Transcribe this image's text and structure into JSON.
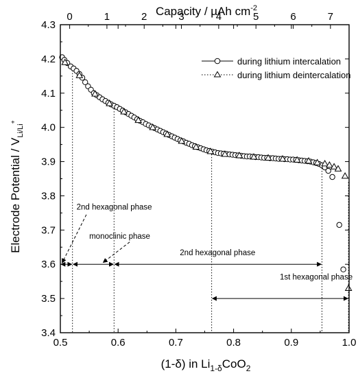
{
  "chart_data": {
    "type": "scatter",
    "top_axis": {
      "label": "Capacity / µAh cm",
      "label_sup": "-2",
      "range": [
        -0.25,
        7.5
      ],
      "ticks": [
        0,
        1,
        2,
        3,
        4,
        5,
        6,
        7
      ]
    },
    "x_axis": {
      "label_pre": "(1-δ) in Li",
      "label_sub1": "1-δ",
      "label_mid": "CoO",
      "label_sub2": "2",
      "range": [
        0.5,
        1.0
      ],
      "ticks": [
        0.5,
        0.6,
        0.7,
        0.8,
        0.9,
        1.0
      ],
      "tick_labels": [
        "0.5",
        "0.6",
        "0.7",
        "0.8",
        "0.9",
        "1.0"
      ]
    },
    "y_axis": {
      "label": "Electrode Potential / V",
      "label_sub": "Li/Li",
      "label_sup": "+",
      "range": [
        3.4,
        4.3
      ],
      "ticks": [
        3.4,
        3.5,
        3.6,
        3.7,
        3.8,
        3.9,
        4.0,
        4.1,
        4.2,
        4.3
      ],
      "tick_labels": [
        "3.4",
        "3.5",
        "3.6",
        "3.7",
        "3.8",
        "3.9",
        "4.0",
        "4.1",
        "4.2",
        "4.3"
      ]
    },
    "legend": {
      "position": "top-right",
      "entries": [
        {
          "label": "during lithium intercalation",
          "marker": "circle",
          "line": "solid"
        },
        {
          "label": "during lithium deintercalation",
          "marker": "triangle",
          "line": "dotted"
        }
      ]
    },
    "series": [
      {
        "marker": "circle",
        "points": [
          [
            0.503,
            4.205
          ],
          [
            0.507,
            4.197
          ],
          [
            0.512,
            4.188
          ],
          [
            0.518,
            4.178
          ],
          [
            0.523,
            4.172
          ],
          [
            0.528,
            4.165
          ],
          [
            0.533,
            4.156
          ],
          [
            0.538,
            4.145
          ],
          [
            0.543,
            4.132
          ],
          [
            0.548,
            4.12
          ],
          [
            0.553,
            4.11
          ],
          [
            0.558,
            4.1
          ],
          [
            0.563,
            4.094
          ],
          [
            0.568,
            4.088
          ],
          [
            0.573,
            4.082
          ],
          [
            0.578,
            4.077
          ],
          [
            0.583,
            4.072
          ],
          [
            0.588,
            4.067
          ],
          [
            0.593,
            4.063
          ],
          [
            0.598,
            4.059
          ],
          [
            0.603,
            4.054
          ],
          [
            0.608,
            4.049
          ],
          [
            0.613,
            4.044
          ],
          [
            0.618,
            4.039
          ],
          [
            0.623,
            4.034
          ],
          [
            0.628,
            4.029
          ],
          [
            0.633,
            4.024
          ],
          [
            0.638,
            4.019
          ],
          [
            0.643,
            4.015
          ],
          [
            0.648,
            4.01
          ],
          [
            0.653,
            4.006
          ],
          [
            0.658,
            4.002
          ],
          [
            0.663,
            3.998
          ],
          [
            0.668,
            3.994
          ],
          [
            0.673,
            3.99
          ],
          [
            0.678,
            3.986
          ],
          [
            0.683,
            3.982
          ],
          [
            0.688,
            3.978
          ],
          [
            0.693,
            3.974
          ],
          [
            0.698,
            3.97
          ],
          [
            0.703,
            3.966
          ],
          [
            0.708,
            3.962
          ],
          [
            0.713,
            3.959
          ],
          [
            0.718,
            3.955
          ],
          [
            0.723,
            3.952
          ],
          [
            0.728,
            3.948
          ],
          [
            0.733,
            3.945
          ],
          [
            0.738,
            3.942
          ],
          [
            0.743,
            3.939
          ],
          [
            0.748,
            3.936
          ],
          [
            0.753,
            3.933
          ],
          [
            0.758,
            3.931
          ],
          [
            0.763,
            3.929
          ],
          [
            0.768,
            3.927
          ],
          [
            0.773,
            3.925
          ],
          [
            0.778,
            3.924
          ],
          [
            0.783,
            3.923
          ],
          [
            0.788,
            3.922
          ],
          [
            0.793,
            3.921
          ],
          [
            0.798,
            3.92
          ],
          [
            0.803,
            3.919
          ],
          [
            0.808,
            3.918
          ],
          [
            0.813,
            3.917
          ],
          [
            0.818,
            3.916
          ],
          [
            0.823,
            3.915
          ],
          [
            0.828,
            3.915
          ],
          [
            0.833,
            3.914
          ],
          [
            0.838,
            3.913
          ],
          [
            0.843,
            3.913
          ],
          [
            0.848,
            3.912
          ],
          [
            0.853,
            3.911
          ],
          [
            0.858,
            3.911
          ],
          [
            0.863,
            3.91
          ],
          [
            0.868,
            3.91
          ],
          [
            0.873,
            3.909
          ],
          [
            0.878,
            3.908
          ],
          [
            0.883,
            3.908
          ],
          [
            0.888,
            3.907
          ],
          [
            0.893,
            3.907
          ],
          [
            0.898,
            3.906
          ],
          [
            0.903,
            3.906
          ],
          [
            0.908,
            3.905
          ],
          [
            0.913,
            3.904
          ],
          [
            0.918,
            3.903
          ],
          [
            0.923,
            3.902
          ],
          [
            0.928,
            3.901
          ],
          [
            0.933,
            3.9
          ],
          [
            0.938,
            3.898
          ],
          [
            0.943,
            3.896
          ],
          [
            0.948,
            3.893
          ],
          [
            0.953,
            3.889
          ],
          [
            0.958,
            3.883
          ],
          [
            0.964,
            3.873
          ],
          [
            0.971,
            3.855
          ],
          [
            0.983,
            3.715
          ],
          [
            0.99,
            3.585
          ]
        ]
      },
      {
        "marker": "triangle",
        "points": [
          [
            0.508,
            4.19
          ],
          [
            0.533,
            4.152
          ],
          [
            0.56,
            4.098
          ],
          [
            0.585,
            4.07
          ],
          [
            0.61,
            4.046
          ],
          [
            0.635,
            4.021
          ],
          [
            0.66,
            4.0
          ],
          [
            0.685,
            3.98
          ],
          [
            0.71,
            3.96
          ],
          [
            0.735,
            3.943
          ],
          [
            0.76,
            3.93
          ],
          [
            0.785,
            3.922
          ],
          [
            0.81,
            3.918
          ],
          [
            0.835,
            3.914
          ],
          [
            0.86,
            3.911
          ],
          [
            0.885,
            3.908
          ],
          [
            0.91,
            3.905
          ],
          [
            0.93,
            3.902
          ],
          [
            0.945,
            3.897
          ],
          [
            0.958,
            3.894
          ],
          [
            0.966,
            3.89
          ],
          [
            0.974,
            3.885
          ],
          [
            0.981,
            3.879
          ],
          [
            0.993,
            3.858
          ],
          [
            0.999,
            3.53
          ]
        ]
      }
    ],
    "phase_boundaries": [
      0.521,
      0.593,
      0.762,
      0.953,
      0.999
    ],
    "annotations": [
      {
        "text": "2nd hexagonal phase",
        "x": 0.528,
        "y": 3.76
      },
      {
        "text": "monoclinic phase",
        "x": 0.55,
        "y": 3.675
      },
      {
        "text": "2nd hexagonal phase",
        "x": 0.707,
        "y": 3.627
      },
      {
        "text": "1st hexagonal phase",
        "x": 0.88,
        "y": 3.555
      }
    ],
    "phase_spans": [
      [
        0.5,
        0.521
      ],
      [
        0.521,
        0.593
      ],
      [
        0.593,
        0.953
      ],
      [
        0.762,
        0.999
      ]
    ]
  }
}
